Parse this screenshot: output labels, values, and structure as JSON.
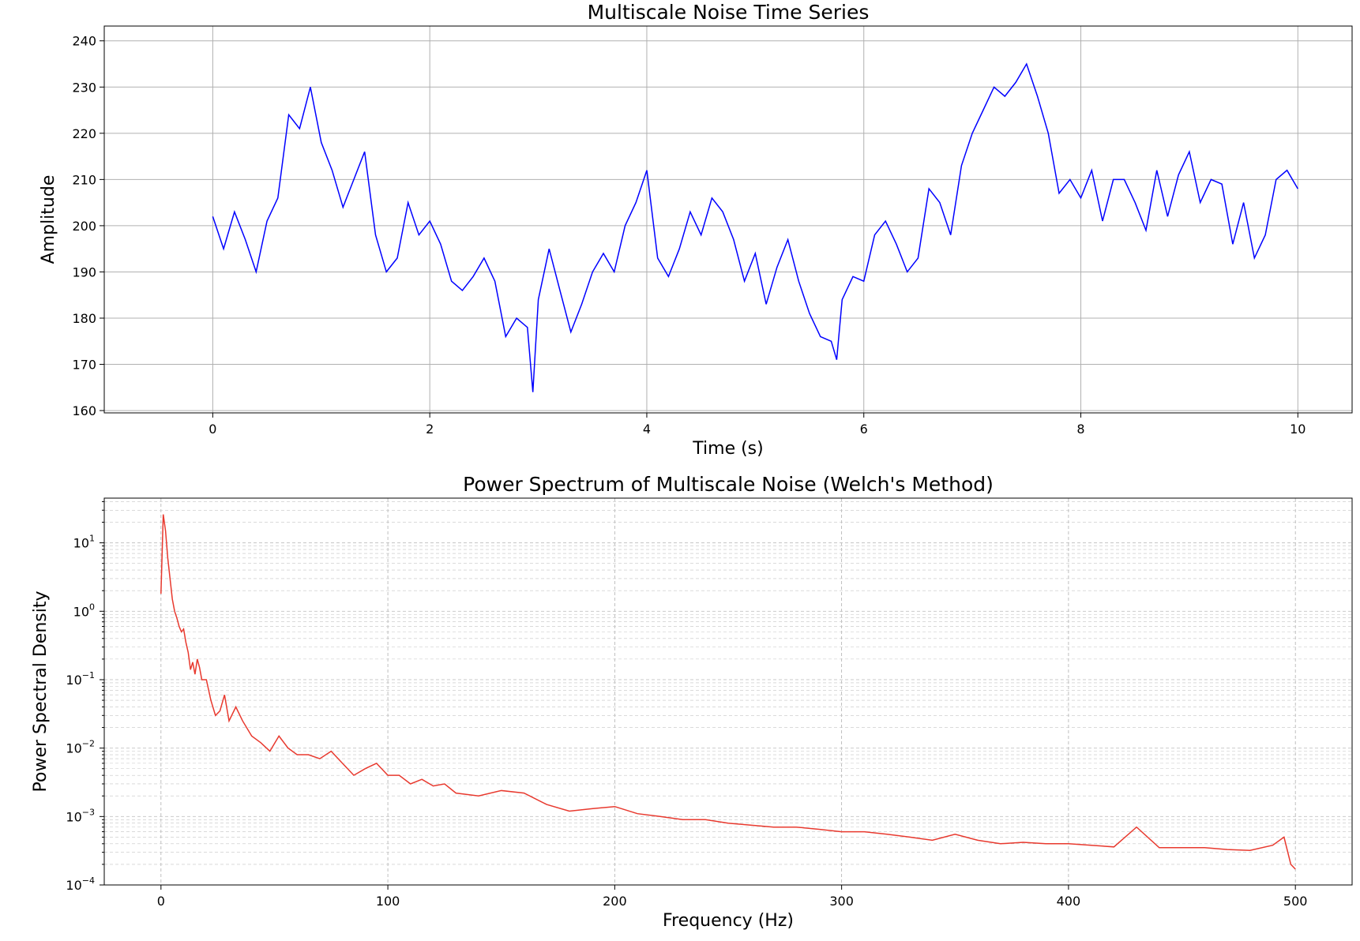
{
  "chart_data": [
    {
      "type": "line",
      "title": "Multiscale Noise Time Series",
      "xlabel": "Time (s)",
      "ylabel": "Amplitude",
      "xlim": [
        -1.0,
        10.5
      ],
      "ylim": [
        159.5,
        243.2
      ],
      "xticks": [
        0,
        2,
        4,
        6,
        8,
        10
      ],
      "yticks": [
        160,
        170,
        180,
        190,
        200,
        210,
        220,
        230,
        240
      ],
      "grid": true,
      "line_color": "#0000ff",
      "series": [
        {
          "x": [
            0,
            0.1,
            0.2,
            0.3,
            0.4,
            0.5,
            0.6,
            0.7,
            0.8,
            0.9,
            1.0,
            1.1,
            1.2,
            1.3,
            1.4,
            1.5,
            1.6,
            1.7,
            1.8,
            1.9,
            2.0,
            2.1,
            2.2,
            2.3,
            2.4,
            2.5,
            2.6,
            2.7,
            2.8,
            2.9,
            2.95,
            3.0,
            3.1,
            3.2,
            3.3,
            3.4,
            3.5,
            3.6,
            3.7,
            3.8,
            3.9,
            4.0,
            4.1,
            4.2,
            4.3,
            4.4,
            4.5,
            4.6,
            4.7,
            4.8,
            4.9,
            5.0,
            5.1,
            5.2,
            5.3,
            5.4,
            5.5,
            5.6,
            5.7,
            5.75,
            5.8,
            5.9,
            6.0,
            6.1,
            6.2,
            6.3,
            6.4,
            6.5,
            6.6,
            6.7,
            6.8,
            6.9,
            7.0,
            7.1,
            7.2,
            7.3,
            7.4,
            7.5,
            7.6,
            7.7,
            7.8,
            7.9,
            8.0,
            8.1,
            8.2,
            8.3,
            8.4,
            8.5,
            8.6,
            8.7,
            8.8,
            8.9,
            9.0,
            9.1,
            9.2,
            9.3,
            9.4,
            9.5,
            9.6,
            9.7,
            9.8,
            9.9,
            10.0
          ],
          "values": [
            202,
            195,
            203,
            197,
            190,
            201,
            206,
            224,
            221,
            230,
            218,
            212,
            204,
            210,
            216,
            198,
            190,
            193,
            205,
            198,
            201,
            196,
            188,
            186,
            189,
            193,
            188,
            176,
            180,
            178,
            164,
            184,
            195,
            186,
            177,
            183,
            190,
            194,
            190,
            200,
            205,
            212,
            193,
            189,
            195,
            203,
            198,
            206,
            203,
            197,
            188,
            194,
            183,
            191,
            197,
            188,
            181,
            176,
            175,
            171,
            184,
            189,
            188,
            198,
            201,
            196,
            190,
            193,
            208,
            205,
            198,
            213,
            220,
            225,
            230,
            228,
            231,
            235,
            228,
            220,
            207,
            210,
            206,
            212,
            201,
            210,
            210,
            205,
            199,
            212,
            202,
            211,
            216,
            205,
            210,
            209,
            196,
            205,
            193,
            198,
            210,
            212,
            208
          ]
        }
      ]
    },
    {
      "type": "line",
      "title": "Power Spectrum of Multiscale Noise (Welch's Method)",
      "xlabel": "Frequency (Hz)",
      "ylabel": "Power Spectral Density",
      "xlim": [
        -25,
        525
      ],
      "ylim": [
        0.0001,
        45
      ],
      "yscale": "log",
      "xticks": [
        0,
        100,
        200,
        300,
        400,
        500
      ],
      "yticks": [
        {
          "label_base": "10",
          "label_exp": "1"
        },
        {
          "label_base": "10",
          "label_exp": "0"
        },
        {
          "label_base": "10",
          "label_exp": "−1"
        },
        {
          "label_base": "10",
          "label_exp": "−2"
        },
        {
          "label_base": "10",
          "label_exp": "−3"
        },
        {
          "label_base": "10",
          "label_exp": "−4"
        }
      ],
      "grid": "both (major and minor, dashed)",
      "line_color": "#e8392e",
      "series": [
        {
          "x": [
            0,
            1,
            2,
            3,
            4,
            5,
            6,
            7,
            8,
            9,
            10,
            11,
            12,
            13,
            14,
            15,
            16,
            17,
            18,
            19,
            20,
            22,
            24,
            26,
            28,
            30,
            33,
            36,
            40,
            44,
            48,
            52,
            56,
            60,
            65,
            70,
            75,
            80,
            85,
            90,
            95,
            100,
            105,
            110,
            115,
            120,
            125,
            130,
            140,
            150,
            160,
            170,
            180,
            190,
            200,
            210,
            220,
            230,
            240,
            250,
            260,
            270,
            280,
            290,
            300,
            310,
            320,
            330,
            340,
            350,
            360,
            370,
            380,
            390,
            400,
            410,
            420,
            430,
            440,
            450,
            460,
            470,
            480,
            490,
            495,
            498,
            500
          ],
          "values": [
            1.8,
            26,
            15,
            6,
            3,
            1.5,
            1.0,
            0.8,
            0.6,
            0.5,
            0.55,
            0.35,
            0.25,
            0.14,
            0.18,
            0.12,
            0.2,
            0.15,
            0.1,
            0.1,
            0.1,
            0.05,
            0.03,
            0.035,
            0.06,
            0.025,
            0.04,
            0.025,
            0.015,
            0.012,
            0.009,
            0.015,
            0.01,
            0.008,
            0.008,
            0.007,
            0.009,
            0.006,
            0.004,
            0.005,
            0.006,
            0.004,
            0.004,
            0.003,
            0.0035,
            0.0028,
            0.003,
            0.0022,
            0.002,
            0.0024,
            0.0022,
            0.0015,
            0.0012,
            0.0013,
            0.0014,
            0.0011,
            0.001,
            0.0009,
            0.0009,
            0.0008,
            0.00075,
            0.0007,
            0.0007,
            0.00065,
            0.0006,
            0.0006,
            0.00055,
            0.0005,
            0.00045,
            0.00055,
            0.00045,
            0.0004,
            0.00042,
            0.0004,
            0.0004,
            0.00038,
            0.00036,
            0.0007,
            0.00035,
            0.00035,
            0.00035,
            0.00033,
            0.00032,
            0.00038,
            0.0005,
            0.0002,
            0.00017
          ]
        }
      ]
    }
  ]
}
